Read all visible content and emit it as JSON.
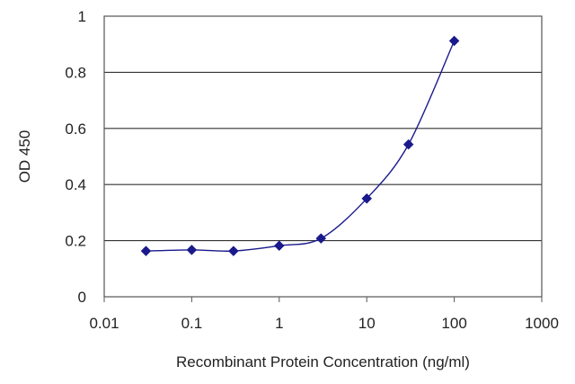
{
  "chart_data": {
    "type": "scatter",
    "xlabel": "Recombinant Protein Concentration (ng/ml)",
    "ylabel": "OD 450",
    "x_scale": "log",
    "xlim": [
      0.01,
      1000
    ],
    "ylim": [
      0,
      1
    ],
    "x_ticks": [
      "0.01",
      "0.1",
      "1",
      "10",
      "100",
      "1000"
    ],
    "y_ticks": [
      "0",
      "0.2",
      "0.4",
      "0.6",
      "0.8",
      "1"
    ],
    "grid": "horizontal",
    "legend": "none",
    "series": [
      {
        "x": [
          0.03,
          0.1,
          0.3,
          1,
          3,
          10,
          30,
          100
        ],
        "y": [
          0.163,
          0.167,
          0.163,
          0.182,
          0.208,
          0.35,
          0.543,
          0.912
        ],
        "marker": "diamond",
        "curve": "smooth fit"
      }
    ],
    "colors": {
      "series": "#1a1a8c",
      "grid": "#333333",
      "plot_background": "#ffffff"
    }
  }
}
